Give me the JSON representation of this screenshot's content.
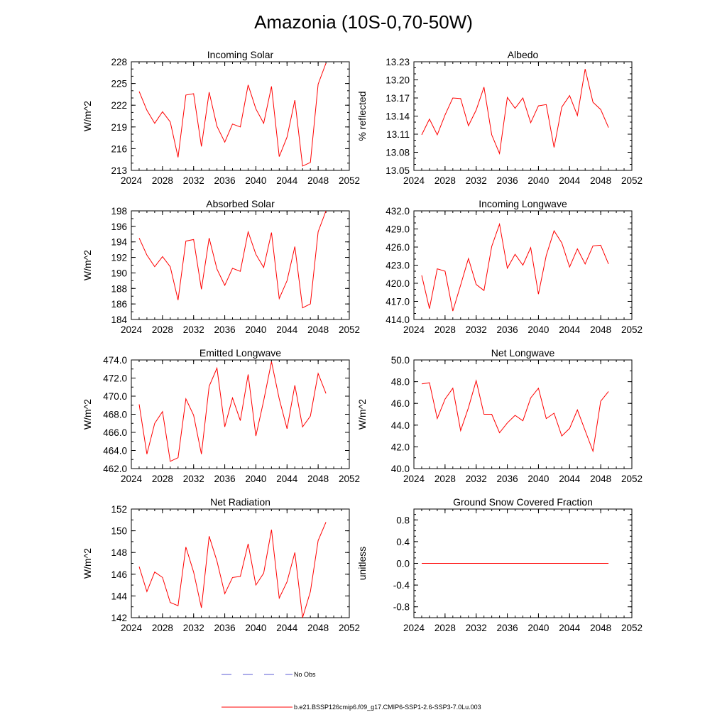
{
  "figure_title": "Amazonia (10S-0,70-50W)",
  "colors": {
    "series": "#ff0000",
    "no_obs": "#5b5bd6"
  },
  "legend": {
    "no_obs_label": "No Obs",
    "model_label": "b.e21.BSSP126cmip6.f09_g17.CMIP6-SSP1-2.6-SSP3-7.0Lu.003"
  },
  "chart_data": [
    {
      "type": "line",
      "title": "Incoming Solar",
      "xlabel": "",
      "ylabel": "W/m^2",
      "xlim": [
        2024,
        2052
      ],
      "xticks": [
        2024,
        2028,
        2032,
        2036,
        2040,
        2044,
        2048,
        2052
      ],
      "xminor": 1,
      "ylim": [
        213,
        228
      ],
      "yticks": [
        "213",
        "216",
        "219",
        "222",
        "225",
        "228"
      ],
      "ytick_values": [
        213,
        216,
        219,
        222,
        225,
        228
      ],
      "yminor": 1,
      "x": [
        2025,
        2026,
        2027,
        2028,
        2029,
        2030,
        2031,
        2032,
        2033,
        2034,
        2035,
        2036,
        2037,
        2038,
        2039,
        2040,
        2041,
        2042,
        2043,
        2044,
        2045,
        2046,
        2047,
        2048,
        2049
      ],
      "values": [
        223.9,
        221.3,
        219.5,
        221.1,
        219.7,
        214.8,
        223.4,
        223.6,
        216.3,
        223.8,
        219.1,
        216.9,
        219.4,
        219.0,
        224.8,
        221.5,
        219.5,
        224.6,
        214.9,
        217.6,
        222.7,
        213.6,
        214.1,
        224.9,
        227.8
      ]
    },
    {
      "type": "line",
      "title": "Albedo",
      "xlabel": "",
      "ylabel": "% reflected",
      "xlim": [
        2024,
        2052
      ],
      "xticks": [
        2024,
        2028,
        2032,
        2036,
        2040,
        2044,
        2048,
        2052
      ],
      "xminor": 1,
      "ylim": [
        13.05,
        13.23
      ],
      "yticks": [
        "13.05",
        "13.08",
        "13.11",
        "13.14",
        "13.17",
        "13.20",
        "13.23"
      ],
      "ytick_values": [
        13.05,
        13.08,
        13.11,
        13.14,
        13.17,
        13.2,
        13.23
      ],
      "yminor": 0.01,
      "x": [
        2025,
        2026,
        2027,
        2028,
        2029,
        2030,
        2031,
        2032,
        2033,
        2034,
        2035,
        2036,
        2037,
        2038,
        2039,
        2040,
        2041,
        2042,
        2043,
        2044,
        2045,
        2046,
        2047,
        2048,
        2049
      ],
      "values": [
        13.109,
        13.135,
        13.109,
        13.142,
        13.17,
        13.169,
        13.124,
        13.15,
        13.188,
        13.109,
        13.078,
        13.171,
        13.153,
        13.17,
        13.129,
        13.157,
        13.159,
        13.088,
        13.155,
        13.174,
        13.141,
        13.218,
        13.163,
        13.151,
        13.121
      ]
    },
    {
      "type": "line",
      "title": "Absorbed Solar",
      "xlabel": "",
      "ylabel": "W/m^2",
      "xlim": [
        2024,
        2052
      ],
      "xticks": [
        2024,
        2028,
        2032,
        2036,
        2040,
        2044,
        2048,
        2052
      ],
      "xminor": 1,
      "ylim": [
        184,
        198
      ],
      "yticks": [
        "184",
        "186",
        "188",
        "190",
        "192",
        "194",
        "196",
        "198"
      ],
      "ytick_values": [
        184,
        186,
        188,
        190,
        192,
        194,
        196,
        198
      ],
      "yminor": 1,
      "x": [
        2025,
        2026,
        2027,
        2028,
        2029,
        2030,
        2031,
        2032,
        2033,
        2034,
        2035,
        2036,
        2037,
        2038,
        2039,
        2040,
        2041,
        2042,
        2043,
        2044,
        2045,
        2046,
        2047,
        2048,
        2049
      ],
      "values": [
        194.5,
        192.3,
        190.8,
        192.1,
        190.8,
        186.5,
        194.1,
        194.3,
        187.9,
        194.5,
        190.5,
        188.4,
        190.6,
        190.2,
        195.3,
        192.4,
        190.7,
        195.2,
        186.7,
        189.0,
        193.4,
        185.5,
        186.0,
        195.3,
        198.0
      ]
    },
    {
      "type": "line",
      "title": "Incoming Longwave",
      "xlabel": "",
      "ylabel": "",
      "xlim": [
        2024,
        2052
      ],
      "xticks": [
        2024,
        2028,
        2032,
        2036,
        2040,
        2044,
        2048,
        2052
      ],
      "xminor": 1,
      "ylim": [
        414,
        432
      ],
      "yticks": [
        "414.0",
        "417.0",
        "420.0",
        "423.0",
        "426.0",
        "429.0",
        "432.0"
      ],
      "ytick_values": [
        414,
        417,
        420,
        423,
        426,
        429,
        432
      ],
      "yminor": 1,
      "x": [
        2025,
        2026,
        2027,
        2028,
        2029,
        2030,
        2031,
        2032,
        2033,
        2034,
        2035,
        2036,
        2037,
        2038,
        2039,
        2040,
        2041,
        2042,
        2043,
        2044,
        2045,
        2046,
        2047,
        2048,
        2049
      ],
      "values": [
        421.3,
        415.8,
        422.4,
        422.0,
        415.4,
        419.7,
        424.1,
        419.8,
        418.8,
        426.1,
        429.8,
        422.5,
        424.8,
        423.0,
        425.9,
        418.2,
        424.6,
        428.7,
        426.7,
        422.7,
        425.7,
        423.2,
        426.2,
        426.3,
        423.2
      ]
    },
    {
      "type": "line",
      "title": "Emitted Longwave",
      "xlabel": "",
      "ylabel": "W/m^2",
      "xlim": [
        2024,
        2052
      ],
      "xticks": [
        2024,
        2028,
        2032,
        2036,
        2040,
        2044,
        2048,
        2052
      ],
      "xminor": 1,
      "ylim": [
        462,
        474
      ],
      "yticks": [
        "462.0",
        "464.0",
        "466.0",
        "468.0",
        "470.0",
        "472.0",
        "474.0"
      ],
      "ytick_values": [
        462,
        464,
        466,
        468,
        470,
        472,
        474
      ],
      "yminor": 1,
      "x": [
        2025,
        2026,
        2027,
        2028,
        2029,
        2030,
        2031,
        2032,
        2033,
        2034,
        2035,
        2036,
        2037,
        2038,
        2039,
        2040,
        2041,
        2042,
        2043,
        2044,
        2045,
        2046,
        2047,
        2048,
        2049
      ],
      "values": [
        469.1,
        463.6,
        467.0,
        468.3,
        462.8,
        463.2,
        469.7,
        467.9,
        463.6,
        471.1,
        473.1,
        466.6,
        469.8,
        467.3,
        472.4,
        465.6,
        469.5,
        473.8,
        469.7,
        466.4,
        471.2,
        466.6,
        467.8,
        472.5,
        470.3
      ]
    },
    {
      "type": "line",
      "title": "Net Longwave",
      "xlabel": "",
      "ylabel": "W/m^2",
      "xlim": [
        2024,
        2052
      ],
      "xticks": [
        2024,
        2028,
        2032,
        2036,
        2040,
        2044,
        2048,
        2052
      ],
      "xminor": 1,
      "ylim": [
        40,
        50
      ],
      "yticks": [
        "40.0",
        "42.0",
        "44.0",
        "46.0",
        "48.0",
        "50.0"
      ],
      "ytick_values": [
        40,
        42,
        44,
        46,
        48,
        50
      ],
      "yminor": 1,
      "x": [
        2025,
        2026,
        2027,
        2028,
        2029,
        2030,
        2031,
        2032,
        2033,
        2034,
        2035,
        2036,
        2037,
        2038,
        2039,
        2040,
        2041,
        2042,
        2043,
        2044,
        2045,
        2046,
        2047,
        2048,
        2049
      ],
      "values": [
        47.8,
        47.9,
        44.6,
        46.4,
        47.4,
        43.5,
        45.6,
        48.1,
        45.0,
        45.0,
        43.3,
        44.2,
        44.9,
        44.4,
        46.5,
        47.4,
        44.6,
        45.1,
        43.0,
        43.7,
        45.4,
        43.5,
        41.6,
        46.2,
        47.1
      ]
    },
    {
      "type": "line",
      "title": "Net Radiation",
      "xlabel": "",
      "ylabel": "W/m^2",
      "xlim": [
        2024,
        2052
      ],
      "xticks": [
        2024,
        2028,
        2032,
        2036,
        2040,
        2044,
        2048,
        2052
      ],
      "xminor": 1,
      "ylim": [
        142,
        152
      ],
      "yticks": [
        "142",
        "144",
        "146",
        "148",
        "150",
        "152"
      ],
      "ytick_values": [
        142,
        144,
        146,
        148,
        150,
        152
      ],
      "yminor": 1,
      "x": [
        2025,
        2026,
        2027,
        2028,
        2029,
        2030,
        2031,
        2032,
        2033,
        2034,
        2035,
        2036,
        2037,
        2038,
        2039,
        2040,
        2041,
        2042,
        2043,
        2044,
        2045,
        2046,
        2047,
        2048,
        2049
      ],
      "values": [
        146.7,
        144.4,
        146.2,
        145.7,
        143.4,
        143.1,
        148.5,
        146.2,
        142.9,
        149.5,
        147.2,
        144.2,
        145.7,
        145.8,
        148.8,
        145.0,
        146.1,
        150.1,
        143.8,
        145.3,
        148.0,
        142.0,
        144.4,
        149.1,
        150.8
      ]
    },
    {
      "type": "line",
      "title": "Ground Snow Covered Fraction",
      "xlabel": "",
      "ylabel": "unitless",
      "xlim": [
        2024,
        2052
      ],
      "xticks": [
        2024,
        2028,
        2032,
        2036,
        2040,
        2044,
        2048,
        2052
      ],
      "xminor": 1,
      "ylim": [
        -1.0,
        1.0
      ],
      "yticks": [
        "-0.8",
        "-0.4",
        "0.0",
        "0.4",
        "0.8"
      ],
      "ytick_values": [
        -0.8,
        -0.4,
        0.0,
        0.4,
        0.8
      ],
      "yminor": 0.1,
      "x": [
        2025,
        2049
      ],
      "values": [
        0.0,
        0.0
      ]
    }
  ]
}
